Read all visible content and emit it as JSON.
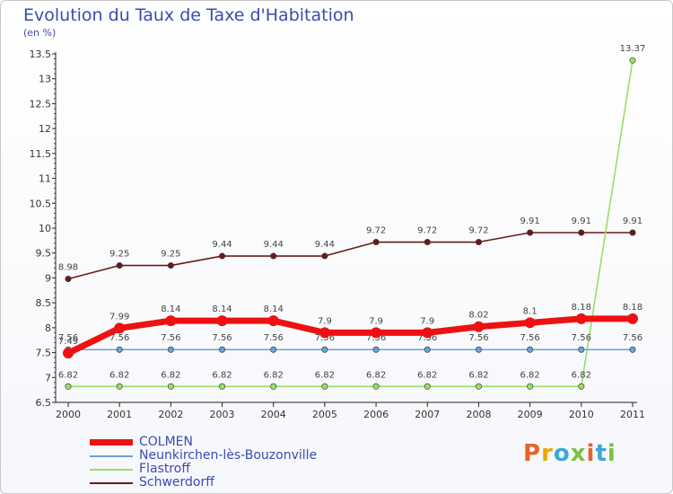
{
  "header": {
    "title": "Evolution du Taux de Taxe d'Habitation",
    "subtitle": "(en %)"
  },
  "logo": {
    "text": "Proxiti",
    "colors": [
      "#e8632a",
      "#f0a500",
      "#3ba8d8",
      "#7cc243",
      "#e8632a",
      "#3ba8d8",
      "#7cc243"
    ]
  },
  "chart_data": {
    "type": "line",
    "title": "Evolution du Taux de Taxe d'Habitation",
    "ylabel": "(en %)",
    "x": [
      "2000",
      "2001",
      "2002",
      "2003",
      "2004",
      "2005",
      "2006",
      "2007",
      "2008",
      "2009",
      "2010",
      "2011"
    ],
    "ylim": [
      6.5,
      13.5
    ],
    "yticks": [
      "6.5",
      "7",
      "7.5",
      "8",
      "8.5",
      "9",
      "9.5",
      "10",
      "10.5",
      "11",
      "11.5",
      "12",
      "12.5",
      "13",
      "13.5"
    ],
    "grid": false,
    "legend": "bottom-left",
    "series": [
      {
        "name": "COLMEN",
        "color": "#ee1111",
        "values": [
          7.49,
          7.99,
          8.14,
          8.14,
          8.14,
          7.9,
          7.9,
          7.9,
          8.02,
          8.1,
          8.18,
          8.18
        ],
        "labels": [
          "7.49",
          "7.99",
          "8.14",
          "8.14",
          "8.14",
          "7.9",
          "7.9",
          "7.9",
          "8.02",
          "8.1",
          "8.18",
          "8.18"
        ]
      },
      {
        "name": "Neunkirchen-lès-Bouzonville",
        "color": "#6e9fd6",
        "values": [
          7.56,
          7.56,
          7.56,
          7.56,
          7.56,
          7.56,
          7.56,
          7.56,
          7.56,
          7.56,
          7.56,
          7.56
        ],
        "labels": [
          "7.56",
          "7.56",
          "7.56",
          "7.56",
          "7.56",
          "7.56",
          "7.56",
          "7.56",
          "7.56",
          "7.56",
          "7.56",
          "7.56"
        ]
      },
      {
        "name": "Flastroff",
        "color": "#99dd66",
        "values": [
          6.82,
          6.82,
          6.82,
          6.82,
          6.82,
          6.82,
          6.82,
          6.82,
          6.82,
          6.82,
          6.82,
          13.37
        ],
        "labels": [
          "6.82",
          "6.82",
          "6.82",
          "6.82",
          "6.82",
          "6.82",
          "6.82",
          "6.82",
          "6.82",
          "6.82",
          "6.82",
          "13.37"
        ]
      },
      {
        "name": "Schwerdorff",
        "color": "#6a1a1a",
        "values": [
          8.98,
          9.25,
          9.25,
          9.44,
          9.44,
          9.44,
          9.72,
          9.72,
          9.72,
          9.91,
          9.91,
          9.91
        ],
        "labels": [
          "8.98",
          "9.25",
          "9.25",
          "9.44",
          "9.44",
          "9.44",
          "9.72",
          "9.72",
          "9.72",
          "9.91",
          "9.91",
          "9.91"
        ]
      }
    ]
  }
}
